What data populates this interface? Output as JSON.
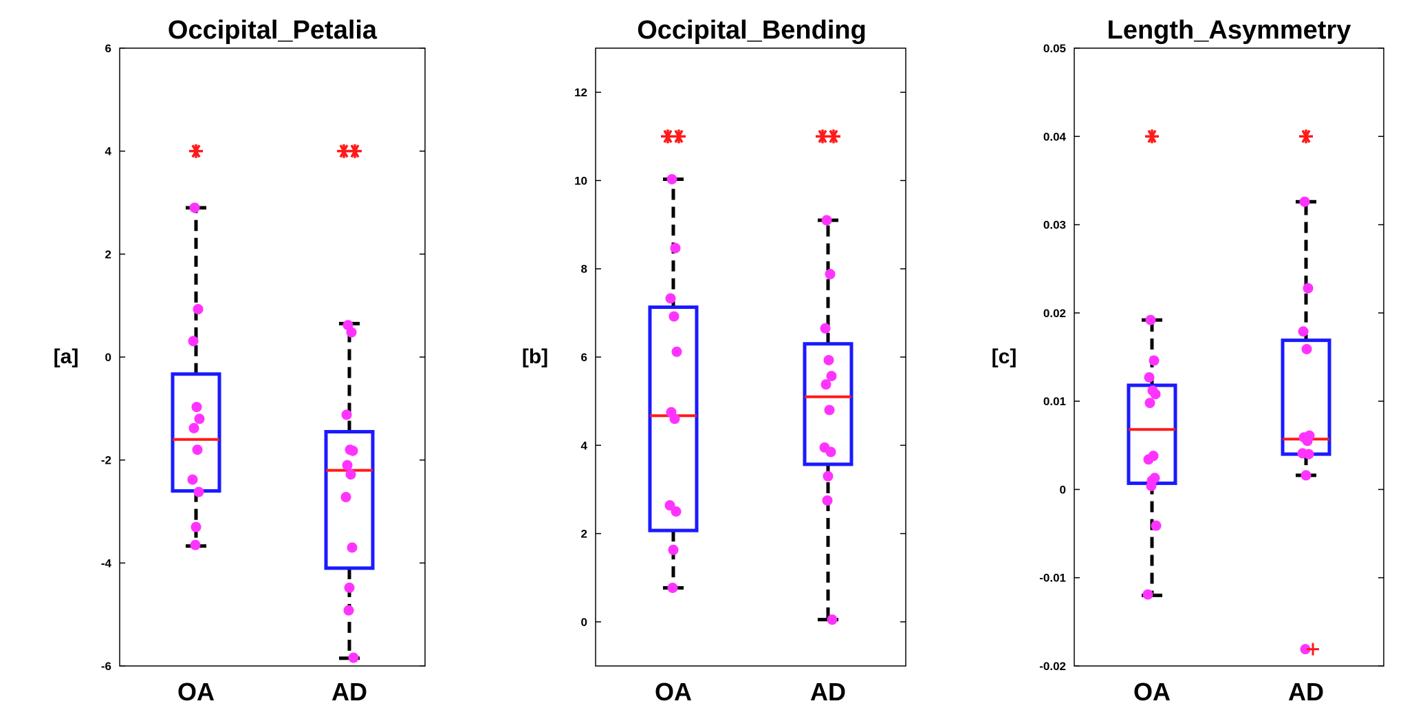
{
  "colors": {
    "box": "#1a1aff",
    "median": "#ff1a1a",
    "whisker": "#000000",
    "points": "#ff33ff",
    "star": "#ff1a1a",
    "outlier": "#ff1a1a",
    "axes": "#000000"
  },
  "chart_data": [
    {
      "type": "box",
      "title": "Occipital_Petalia",
      "ylabel": "[a]",
      "ylim": [
        -6,
        6
      ],
      "yticks": [
        -6,
        -4,
        -2,
        0,
        2,
        4,
        6
      ],
      "ytick_labels": [
        "-6",
        "-4",
        "-2",
        "0",
        "2",
        "4",
        "6"
      ],
      "categories": [
        "OA",
        "AD"
      ],
      "groups": [
        {
          "name": "OA",
          "q1": -2.6,
          "median": -1.6,
          "q3": -0.33,
          "whisker_low": -3.67,
          "whisker_high": 2.9,
          "points": [
            2.9,
            0.93,
            0.31,
            -0.97,
            -1.2,
            -1.38,
            -1.8,
            -2.38,
            -2.62,
            -3.3,
            -3.65
          ],
          "significance": 4,
          "stars": 1,
          "outliers": []
        },
        {
          "name": "AD",
          "q1": -4.1,
          "median": -2.2,
          "q3": -1.45,
          "whisker_low": -5.85,
          "whisker_high": 0.65,
          "points": [
            0.62,
            0.48,
            -1.12,
            -1.8,
            -1.82,
            -2.1,
            -2.28,
            -2.72,
            -3.7,
            -4.48,
            -4.92,
            -5.84
          ],
          "significance": 4,
          "stars": 2,
          "outliers": []
        }
      ]
    },
    {
      "type": "box",
      "title": "Occipital_Bending",
      "ylabel": "[b]",
      "ylim": [
        -1,
        13
      ],
      "yticks": [
        0,
        2,
        4,
        6,
        8,
        10,
        12
      ],
      "ytick_labels": [
        "0",
        "2",
        "4",
        "6",
        "8",
        "10",
        "12"
      ],
      "categories": [
        "OA",
        "AD"
      ],
      "groups": [
        {
          "name": "OA",
          "q1": 2.07,
          "median": 4.67,
          "q3": 7.13,
          "whisker_low": 0.77,
          "whisker_high": 10.03,
          "points": [
            10.03,
            8.47,
            7.33,
            6.92,
            6.12,
            4.75,
            4.6,
            2.64,
            2.5,
            1.63,
            0.77
          ],
          "significance": 11,
          "stars": 2,
          "outliers": []
        },
        {
          "name": "AD",
          "q1": 3.57,
          "median": 5.1,
          "q3": 6.3,
          "whisker_low": 0.05,
          "whisker_high": 9.1,
          "points": [
            9.1,
            7.88,
            6.65,
            5.93,
            5.57,
            5.38,
            4.8,
            3.95,
            3.85,
            3.3,
            2.75,
            0.05
          ],
          "significance": 11,
          "stars": 2,
          "outliers": []
        }
      ]
    },
    {
      "type": "box",
      "title": "Length_Asymmetry",
      "ylabel": "[c]",
      "ylim": [
        -0.02,
        0.05
      ],
      "yticks": [
        -0.02,
        -0.01,
        0,
        0.01,
        0.02,
        0.03,
        0.04,
        0.05
      ],
      "ytick_labels": [
        "-0.02",
        "-0.01",
        "0",
        "0.01",
        "0.02",
        "0.03",
        "0.04",
        "0.05"
      ],
      "categories": [
        "OA",
        "AD"
      ],
      "groups": [
        {
          "name": "OA",
          "q1": 0.0007,
          "median": 0.0068,
          "q3": 0.0118,
          "whisker_low": -0.012,
          "whisker_high": 0.0192,
          "points": [
            0.0192,
            0.0146,
            0.0127,
            0.0112,
            0.0108,
            0.0098,
            0.0038,
            0.0034,
            0.0013,
            0.001,
            0.0004,
            -0.0041,
            -0.0119
          ],
          "significance": 0.04,
          "stars": 1,
          "outliers": []
        },
        {
          "name": "AD",
          "q1": 0.004,
          "median": 0.0057,
          "q3": 0.0169,
          "whisker_low": 0.0016,
          "whisker_high": 0.0326,
          "points": [
            0.0326,
            0.0228,
            0.0179,
            0.0159,
            0.0061,
            0.0059,
            0.0055,
            0.0041,
            0.004,
            0.0016,
            -0.0181
          ],
          "significance": 0.04,
          "stars": 1,
          "outliers": [
            -0.0181
          ]
        }
      ]
    }
  ]
}
